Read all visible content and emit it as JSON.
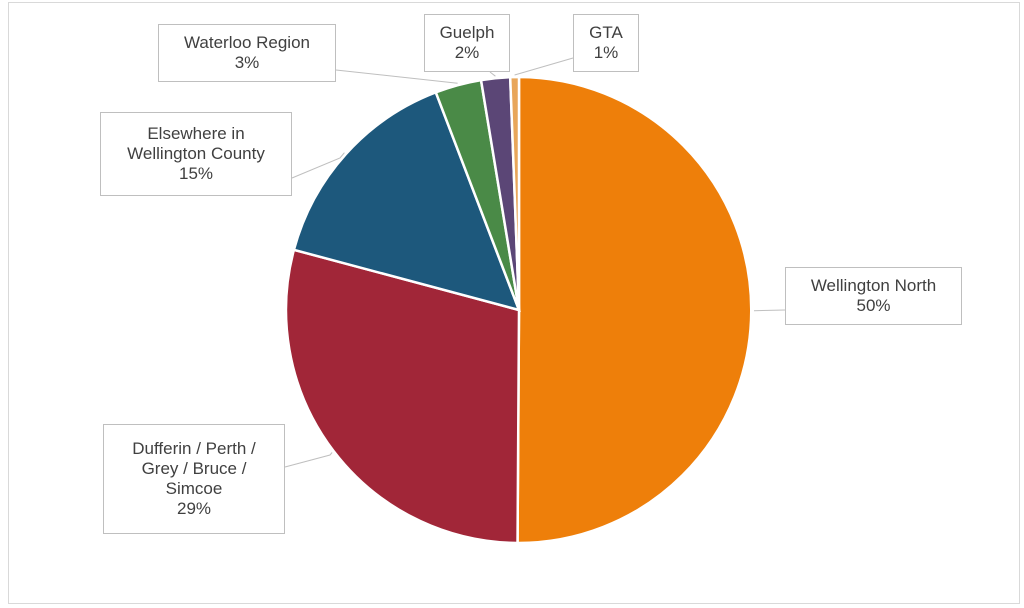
{
  "chart_data": {
    "type": "pie",
    "title": "",
    "slices": [
      {
        "label": "Wellington North",
        "percent_label": "50%",
        "value": 50,
        "color": "#ee7f0a"
      },
      {
        "label": "Dufferin / Perth /\nGrey / Bruce /\nSimcoe",
        "percent_label": "29%",
        "value": 29,
        "color": "#a12638"
      },
      {
        "label": "Elsewhere in\nWellington County",
        "percent_label": "15%",
        "value": 15,
        "color": "#1d587c"
      },
      {
        "label": "Waterloo Region",
        "percent_label": "3%",
        "value": 3.2,
        "color": "#4a8a47"
      },
      {
        "label": "Guelph",
        "percent_label": "2%",
        "value": 2,
        "color": "#5b4676"
      },
      {
        "label": "GTA",
        "percent_label": "1%",
        "value": 0.6,
        "color": "#e8a65a"
      }
    ],
    "start_angle_deg": 0,
    "direction": "clockwise",
    "legend": "none",
    "data_labels": "callouts"
  }
}
